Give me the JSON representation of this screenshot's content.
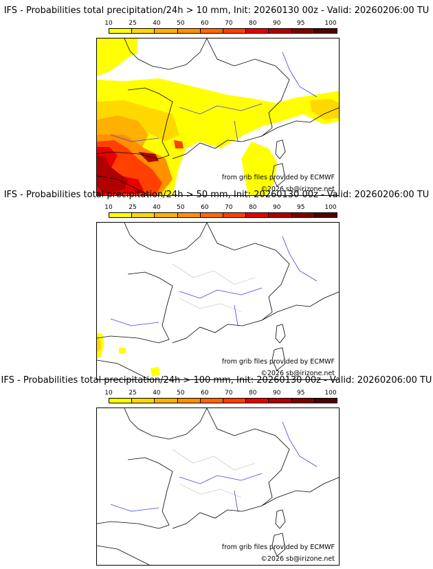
{
  "colors": {
    "scale": [
      "#ffff00",
      "#ffd800",
      "#ffb000",
      "#ff9000",
      "#ff6800",
      "#ff4000",
      "#e60000",
      "#b00000",
      "#800000",
      "#500000"
    ],
    "river": "#3f3fe0",
    "border": "#000000",
    "region": "#bdbdbd"
  },
  "colorbar": {
    "labels": [
      "10",
      "25",
      "40",
      "50",
      "60",
      "70",
      "80",
      "90",
      "95",
      "100"
    ]
  },
  "credits": {
    "source": "from grib files provided by ECMWF",
    "copyright": "©2026 sb@irizone.net"
  },
  "panels": [
    {
      "title": "IFS - Probabilities total precipitation/24h > 10 mm, Init: 20260130 00z - Valid: 20260206:00 TU",
      "threshold": "10 mm",
      "precip_areas": [
        {
          "region": "Brittany / Channel",
          "probability_class": "10-25"
        },
        {
          "region": "Northern France band",
          "probability_class": "10-40"
        },
        {
          "region": "South-West France",
          "probability_class": "25-60"
        },
        {
          "region": "Northern Iberia",
          "probability_class": "50-95"
        },
        {
          "region": "Alps / Northern Italy",
          "probability_class": "10-50"
        },
        {
          "region": "Corsica / Sardinia",
          "probability_class": "10-40"
        }
      ]
    },
    {
      "title": "IFS - Probabilities total precipitation/24h > 50 mm, Init: 20260130 00z - Valid: 20260206:00 TU",
      "threshold": "50 mm",
      "precip_areas": [
        {
          "region": "North-West Iberia coast",
          "probability_class": "10-25"
        },
        {
          "region": "North-East Spain",
          "probability_class": "10"
        }
      ]
    },
    {
      "title": "IFS - Probabilities total precipitation/24h > 100 mm, Init: 20260130 00z - Valid: 20260206:00 TU",
      "threshold": "100 mm",
      "precip_areas": []
    }
  ]
}
